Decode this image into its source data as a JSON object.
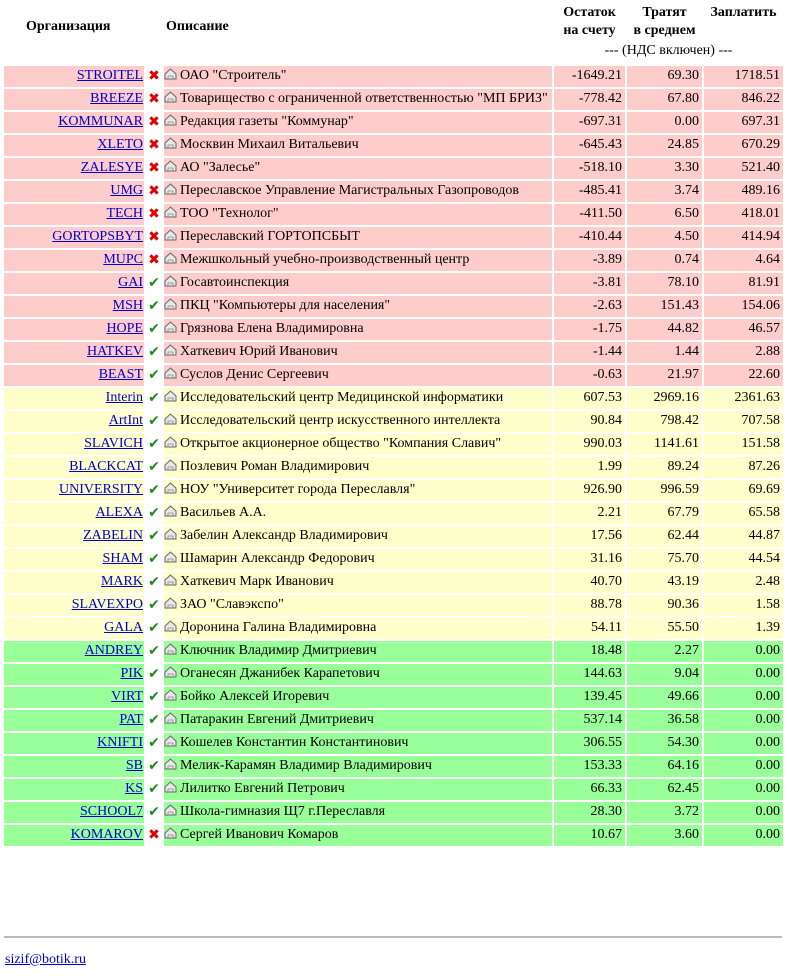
{
  "header": {
    "org": "Организация",
    "desc": "Описание",
    "balance_l1": "Остаток",
    "balance_l2": "на счету",
    "spend_l1": "Тратят",
    "spend_l2": "в среднем",
    "pay": "Заплатить",
    "nds": "--- (НДС включен) ---"
  },
  "colors": {
    "debt": "#ffcccc",
    "warn": "#ffffcc",
    "ok": "#99ff99",
    "link": "#0000cc",
    "cross": "#e00000",
    "check": "#1a8a1a"
  },
  "icons": {
    "status_bad": "cross-icon",
    "status_good": "check-icon",
    "address": "home-icon"
  },
  "rows": [
    {
      "org": "STROITEL",
      "status": "bad",
      "desc": "ОАО \"Строитель\"",
      "balance": "-1649.21",
      "avg": "69.30",
      "pay": "1718.51",
      "tone": "debt"
    },
    {
      "org": "BREEZE",
      "status": "bad",
      "desc": "Товарищество с ограниченной ответственностью \"МП БРИЗ\"",
      "balance": "-778.42",
      "avg": "67.80",
      "pay": "846.22",
      "tone": "debt"
    },
    {
      "org": "KOMMUNAR",
      "status": "bad",
      "desc": "Редакция газеты \"Коммунар\"",
      "balance": "-697.31",
      "avg": "0.00",
      "pay": "697.31",
      "tone": "debt"
    },
    {
      "org": "XLETO",
      "status": "bad",
      "desc": "Москвин Михаил Витальевич",
      "balance": "-645.43",
      "avg": "24.85",
      "pay": "670.29",
      "tone": "debt"
    },
    {
      "org": "ZALESYE",
      "status": "bad",
      "desc": "АО \"Залесье\"",
      "balance": "-518.10",
      "avg": "3.30",
      "pay": "521.40",
      "tone": "debt"
    },
    {
      "org": "UMG",
      "status": "bad",
      "desc": "Переславское Управление Магистральных Газопроводов",
      "balance": "-485.41",
      "avg": "3.74",
      "pay": "489.16",
      "tone": "debt"
    },
    {
      "org": "TECH",
      "status": "bad",
      "desc": "ТОО \"Технолог\"",
      "balance": "-411.50",
      "avg": "6.50",
      "pay": "418.01",
      "tone": "debt"
    },
    {
      "org": "GORTOPSBYT",
      "status": "bad",
      "desc": "Переславский ГОРТОПСБЫТ",
      "balance": "-410.44",
      "avg": "4.50",
      "pay": "414.94",
      "tone": "debt"
    },
    {
      "org": "MUPC",
      "status": "bad",
      "desc": "Межшкольный учебно-производственный центр",
      "balance": "-3.89",
      "avg": "0.74",
      "pay": "4.64",
      "tone": "debt"
    },
    {
      "org": "GAI",
      "status": "good",
      "desc": "Госавтоинспекция",
      "balance": "-3.81",
      "avg": "78.10",
      "pay": "81.91",
      "tone": "debt"
    },
    {
      "org": "MSH",
      "status": "good",
      "desc": "ПКЦ \"Компьютеры для населения\"",
      "balance": "-2.63",
      "avg": "151.43",
      "pay": "154.06",
      "tone": "debt"
    },
    {
      "org": "HOPE",
      "status": "good",
      "desc": "Грязнова Елена Владимировна",
      "balance": "-1.75",
      "avg": "44.82",
      "pay": "46.57",
      "tone": "debt"
    },
    {
      "org": "HATKEV",
      "status": "good",
      "desc": "Хаткевич Юрий Иванович",
      "balance": "-1.44",
      "avg": "1.44",
      "pay": "2.88",
      "tone": "debt"
    },
    {
      "org": "BEAST",
      "status": "good",
      "desc": "Суслов Денис Сергеевич",
      "balance": "-0.63",
      "avg": "21.97",
      "pay": "22.60",
      "tone": "debt"
    },
    {
      "org": "Interin",
      "status": "good",
      "desc": "Исследовательский центр Медицинской информатики",
      "balance": "607.53",
      "avg": "2969.16",
      "pay": "2361.63",
      "tone": "warn"
    },
    {
      "org": "ArtInt",
      "status": "good",
      "desc": "Исследовательский центр искусственного интеллекта",
      "balance": "90.84",
      "avg": "798.42",
      "pay": "707.58",
      "tone": "warn"
    },
    {
      "org": "SLAVICH",
      "status": "good",
      "desc": "Открытое акционерное общество \"Компания Славич\"",
      "balance": "990.03",
      "avg": "1141.61",
      "pay": "151.58",
      "tone": "warn"
    },
    {
      "org": "BLACKCAT",
      "status": "good",
      "desc": "Позлевич Роман Владимирович",
      "balance": "1.99",
      "avg": "89.24",
      "pay": "87.26",
      "tone": "warn"
    },
    {
      "org": "UNIVERSITY",
      "status": "good",
      "desc": "НОУ \"Университет города Переславля\"",
      "balance": "926.90",
      "avg": "996.59",
      "pay": "69.69",
      "tone": "warn"
    },
    {
      "org": "ALEXA",
      "status": "good",
      "desc": "Васильев А.А.",
      "balance": "2.21",
      "avg": "67.79",
      "pay": "65.58",
      "tone": "warn"
    },
    {
      "org": "ZABELIN",
      "status": "good",
      "desc": "Забелин Александр Владимирович",
      "balance": "17.56",
      "avg": "62.44",
      "pay": "44.87",
      "tone": "warn"
    },
    {
      "org": "SHAM",
      "status": "good",
      "desc": "Шамарин Александр Федорович",
      "balance": "31.16",
      "avg": "75.70",
      "pay": "44.54",
      "tone": "warn"
    },
    {
      "org": "MARK",
      "status": "good",
      "desc": "Хаткевич Марк Иванович",
      "balance": "40.70",
      "avg": "43.19",
      "pay": "2.48",
      "tone": "warn"
    },
    {
      "org": "SLAVEXPO",
      "status": "good",
      "desc": "ЗАО \"Славэкспо\"",
      "balance": "88.78",
      "avg": "90.36",
      "pay": "1.58",
      "tone": "warn"
    },
    {
      "org": "GALA",
      "status": "good",
      "desc": "Доронина Галина Владимировна",
      "balance": "54.11",
      "avg": "55.50",
      "pay": "1.39",
      "tone": "warn"
    },
    {
      "org": "ANDREY",
      "status": "good",
      "desc": "Ключник Владимир Дмитриевич",
      "balance": "18.48",
      "avg": "2.27",
      "pay": "0.00",
      "tone": "ok"
    },
    {
      "org": "PIK",
      "status": "good",
      "desc": "Оганесян Джанибек Карапетович",
      "balance": "144.63",
      "avg": "9.04",
      "pay": "0.00",
      "tone": "ok"
    },
    {
      "org": "VIRT",
      "status": "good",
      "desc": "Бойко Алексей Игоревич",
      "balance": "139.45",
      "avg": "49.66",
      "pay": "0.00",
      "tone": "ok"
    },
    {
      "org": "PAT",
      "status": "good",
      "desc": "Патаракин Евгений Дмитриевич",
      "balance": "537.14",
      "avg": "36.58",
      "pay": "0.00",
      "tone": "ok"
    },
    {
      "org": "KNIFTI",
      "status": "good",
      "desc": "Кошелев Константин Константинович",
      "balance": "306.55",
      "avg": "54.30",
      "pay": "0.00",
      "tone": "ok"
    },
    {
      "org": "SB",
      "status": "good",
      "desc": "Мелик-Карамян Владимир Владимирович",
      "balance": "153.33",
      "avg": "64.16",
      "pay": "0.00",
      "tone": "ok"
    },
    {
      "org": "KS",
      "status": "good",
      "desc": "Лилитко Евгений Петрович",
      "balance": "66.33",
      "avg": "62.45",
      "pay": "0.00",
      "tone": "ok"
    },
    {
      "org": "SCHOOL7",
      "status": "good",
      "desc": "Школа-гимназия Щ7 г.Переславля",
      "balance": "28.30",
      "avg": "3.72",
      "pay": "0.00",
      "tone": "ok"
    },
    {
      "org": "KOMAROV",
      "status": "bad",
      "desc": "Сергей Иванович Комаров",
      "balance": "10.67",
      "avg": "3.60",
      "pay": "0.00",
      "tone": "ok"
    }
  ],
  "footer": {
    "email": "sizif@botik.ru"
  }
}
